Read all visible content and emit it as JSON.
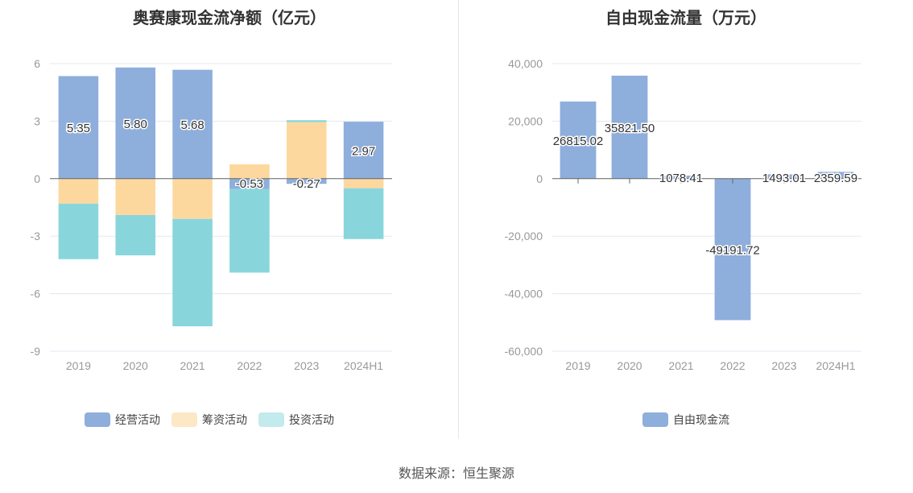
{
  "charts": {
    "left": {
      "title": "奥赛康现金流净额（亿元）"
    },
    "right": {
      "title": "自由现金流量（万元）"
    }
  },
  "source": "数据来源：恒生聚源",
  "colors": {
    "operating": "#8eaedc",
    "financing": "#fdd89e",
    "investing": "#88d6dc",
    "axis": "#666666",
    "grid": "#e0e6ef",
    "label": "#999999"
  },
  "chart_data": [
    {
      "type": "bar",
      "stacked": true,
      "title": "奥赛康现金流净额（亿元）",
      "categories": [
        "2019",
        "2020",
        "2021",
        "2022",
        "2023",
        "2024H1"
      ],
      "ylim": [
        -9,
        6
      ],
      "yticks": [
        6,
        3,
        0,
        -3,
        -6,
        -9
      ],
      "legend_position": "bottom",
      "series": [
        {
          "name": "经营活动",
          "color": "#8eaedc",
          "values": [
            5.35,
            5.8,
            5.68,
            -0.53,
            -0.27,
            2.97
          ],
          "labels": [
            "5.35",
            "5.80",
            "5.68",
            "-0.53",
            "-0.27",
            "2.97"
          ]
        },
        {
          "name": "筹资活动",
          "color": "#fdd89e",
          "values": [
            -1.3,
            -1.9,
            -2.1,
            0.75,
            2.95,
            -0.5
          ]
        },
        {
          "name": "投资活动",
          "color": "#88d6dc",
          "values": [
            -2.9,
            -2.1,
            -5.6,
            -4.37,
            0.1,
            -2.65
          ]
        }
      ]
    },
    {
      "type": "bar",
      "title": "自由现金流量（万元）",
      "categories": [
        "2019",
        "2020",
        "2021",
        "2022",
        "2023",
        "2024H1"
      ],
      "ylim": [
        -60000,
        40000
      ],
      "yticks": [
        40000,
        20000,
        0,
        -20000,
        -40000,
        -60000
      ],
      "ytick_labels": [
        "40,000",
        "20,000",
        "0",
        "-20,000",
        "-40,000",
        "-60,000"
      ],
      "legend_position": "bottom",
      "series": [
        {
          "name": "自由现金流",
          "color": "#8eaedc",
          "values": [
            26815.02,
            35821.5,
            1078.41,
            -49191.72,
            1493.01,
            2359.59
          ],
          "labels": [
            "26815.02",
            "35821.50",
            "1078.41",
            "-49191.72",
            "1493.01",
            "2359.59"
          ]
        }
      ]
    }
  ]
}
